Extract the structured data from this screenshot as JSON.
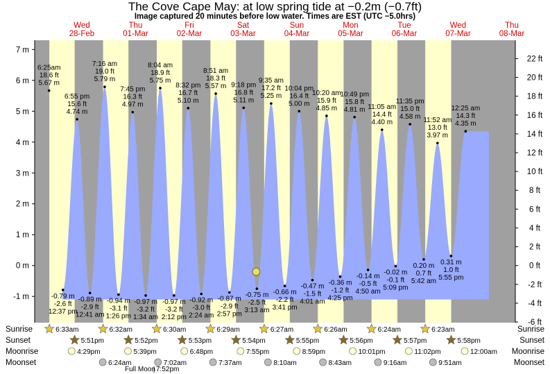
{
  "header": {
    "title": "The Cove Cape May: at low  spring tide at −0.2m (−0.7ft)",
    "subtitle": "Image captured 20 minutes before low water. Times are EST (UTC −5.0hrs)"
  },
  "chart_data": {
    "type": "area",
    "y_left_unit": "m",
    "y_right_unit": "ft",
    "ylim_m": [
      -1.85,
      7.3
    ],
    "left_ticks": [
      "-1 m",
      "0 m",
      "1 m",
      "2 m",
      "3 m",
      "4 m",
      "5 m",
      "6 m",
      "7 m"
    ],
    "left_tick_values": [
      -1,
      0,
      1,
      2,
      3,
      4,
      5,
      6,
      7
    ],
    "right_ticks": [
      "-6 ft",
      "-4 ft",
      "-2 ft",
      "0 ft",
      "2 ft",
      "4 ft",
      "6 ft",
      "8 ft",
      "10 ft",
      "12 ft",
      "14 ft",
      "16 ft",
      "18 ft",
      "20 ft",
      "22 ft"
    ],
    "right_tick_values": [
      -6,
      -4,
      -2,
      0,
      2,
      4,
      6,
      8,
      10,
      12,
      14,
      16,
      18,
      20,
      22
    ],
    "days": [
      {
        "dow": "Wed",
        "date": "28-Feb"
      },
      {
        "dow": "Thu",
        "date": "01-Mar"
      },
      {
        "dow": "Fri",
        "date": "02-Mar"
      },
      {
        "dow": "Sat",
        "date": "03-Mar"
      },
      {
        "dow": "Sun",
        "date": "04-Mar"
      },
      {
        "dow": "Mon",
        "date": "05-Mar"
      },
      {
        "dow": "Tue",
        "date": "06-Mar"
      },
      {
        "dow": "Wed",
        "date": "07-Mar"
      },
      {
        "dow": "Thu",
        "date": "08-Mar"
      }
    ],
    "daylight": [
      {
        "sunrise": "6:33am",
        "sunset": "5:51pm"
      },
      {
        "sunrise": "6:32am",
        "sunset": "5:52pm"
      },
      {
        "sunrise": "6:30am",
        "sunset": "5:53pm"
      },
      {
        "sunrise": "6:29am",
        "sunset": "5:54pm"
      },
      {
        "sunrise": "6:27am",
        "sunset": "5:55pm"
      },
      {
        "sunrise": "6:26am",
        "sunset": "5:56pm"
      },
      {
        "sunrise": "6:24am",
        "sunset": "5:57pm"
      },
      {
        "sunrise": "6:23am",
        "sunset": "5:58pm"
      }
    ],
    "tides": [
      {
        "kind": "high",
        "time": "6:25am",
        "ft": "18.6 ft",
        "m": "5.67 m",
        "value_m": 5.67,
        "day": 0,
        "hour": 6.42
      },
      {
        "kind": "low",
        "time": "12:37 pm",
        "ft": "-2.6 ft",
        "m": "-0.79 m",
        "value_m": -0.79,
        "day": 0,
        "hour": 12.62
      },
      {
        "kind": "high",
        "time": "6:55 pm",
        "ft": "15.6 ft",
        "m": "4.74 m",
        "value_m": 4.74,
        "day": 0,
        "hour": 18.92
      },
      {
        "kind": "low",
        "time": "12:41 am",
        "ft": "-2.9 ft",
        "m": "-0.89 m",
        "value_m": -0.89,
        "day": 1,
        "hour": 0.68
      },
      {
        "kind": "high",
        "time": "7:16 am",
        "ft": "19.0 ft",
        "m": "5.79 m",
        "value_m": 5.79,
        "day": 1,
        "hour": 7.27
      },
      {
        "kind": "low",
        "time": "1:26 pm",
        "ft": "-3.1 ft",
        "m": "-0.94 m",
        "value_m": -0.94,
        "day": 1,
        "hour": 13.43
      },
      {
        "kind": "high",
        "time": "7:45 pm",
        "ft": "16.3 ft",
        "m": "4.97 m",
        "value_m": 4.97,
        "day": 1,
        "hour": 19.75
      },
      {
        "kind": "low",
        "time": "1:34 am",
        "ft": "-3.2 ft",
        "m": "-0.97 m",
        "value_m": -0.97,
        "day": 2,
        "hour": 1.57
      },
      {
        "kind": "high",
        "time": "8:04 am",
        "ft": "18.9 ft",
        "m": "5.75 m",
        "value_m": 5.75,
        "day": 2,
        "hour": 8.07
      },
      {
        "kind": "low",
        "time": "2:12 pm",
        "ft": "-3.2 ft",
        "m": "-0.97 m",
        "value_m": -0.97,
        "day": 2,
        "hour": 14.2
      },
      {
        "kind": "high",
        "time": "8:32 pm",
        "ft": "16.7 ft",
        "m": "5.10 m",
        "value_m": 5.1,
        "day": 2,
        "hour": 20.53
      },
      {
        "kind": "low",
        "time": "2:24 am",
        "ft": "-3.0 ft",
        "m": "-0.92 m",
        "value_m": -0.92,
        "day": 3,
        "hour": 2.4
      },
      {
        "kind": "high",
        "time": "8:51 am",
        "ft": "18.3 ft",
        "m": "5.57 m",
        "value_m": 5.57,
        "day": 3,
        "hour": 8.85
      },
      {
        "kind": "low",
        "time": "2:57 pm",
        "ft": "-2.9 ft",
        "m": "-0.87 m",
        "value_m": -0.87,
        "day": 3,
        "hour": 14.95
      },
      {
        "kind": "high",
        "time": "9:18 pm",
        "ft": "16.8 ft",
        "m": "5.11 m",
        "value_m": 5.11,
        "day": 3,
        "hour": 21.3
      },
      {
        "kind": "low",
        "time": "3:13 am",
        "ft": "-2.5 ft",
        "m": "-0.75 m",
        "value_m": -0.75,
        "day": 4,
        "hour": 3.22
      },
      {
        "kind": "high",
        "time": "9:35 am",
        "ft": "17.2 ft",
        "m": "5.25 m",
        "value_m": 5.25,
        "day": 4,
        "hour": 9.58
      },
      {
        "kind": "low",
        "time": "3:41 pm",
        "ft": "-2.2 ft",
        "m": "-0.66 m",
        "value_m": -0.66,
        "day": 4,
        "hour": 15.68
      },
      {
        "kind": "high",
        "time": "10:04 pm",
        "ft": "16.4 ft",
        "m": "5.00 m",
        "value_m": 5.0,
        "day": 4,
        "hour": 22.07
      },
      {
        "kind": "low",
        "time": "4:01 am",
        "ft": "-1.5 ft",
        "m": "-0.47 m",
        "value_m": -0.47,
        "day": 5,
        "hour": 4.02
      },
      {
        "kind": "high",
        "time": "10:20 am",
        "ft": "15.9 ft",
        "m": "4.85 m",
        "value_m": 4.85,
        "day": 5,
        "hour": 10.33
      },
      {
        "kind": "low",
        "time": "4:25 pm",
        "ft": "-1.2 ft",
        "m": "-0.36 m",
        "value_m": -0.36,
        "day": 5,
        "hour": 16.42
      },
      {
        "kind": "high",
        "time": "10:49 pm",
        "ft": "15.8 ft",
        "m": "4.81 m",
        "value_m": 4.81,
        "day": 5,
        "hour": 22.82
      },
      {
        "kind": "low",
        "time": "4:50 am",
        "ft": "-0.5 ft",
        "m": "-0.14 m",
        "value_m": -0.14,
        "day": 6,
        "hour": 4.83
      },
      {
        "kind": "high",
        "time": "11:05 am",
        "ft": "14.4 ft",
        "m": "4.40 m",
        "value_m": 4.4,
        "day": 6,
        "hour": 11.08
      },
      {
        "kind": "low",
        "time": "5:09 pm",
        "ft": "-0.1 ft",
        "m": "-0.02 m",
        "value_m": -0.02,
        "day": 6,
        "hour": 17.15
      },
      {
        "kind": "high",
        "time": "11:35 pm",
        "ft": "15.0 ft",
        "m": "4.58 m",
        "value_m": 4.58,
        "day": 6,
        "hour": 23.58
      },
      {
        "kind": "low",
        "time": "5:42 am",
        "ft": "0.7 ft",
        "m": "0.20 m",
        "value_m": 0.2,
        "day": 7,
        "hour": 5.7
      },
      {
        "kind": "high",
        "time": "11:52 am",
        "ft": "13.0 ft",
        "m": "3.97 m",
        "value_m": 3.97,
        "day": 7,
        "hour": 11.87
      },
      {
        "kind": "low",
        "time": "5:55 pm",
        "ft": "1.0 ft",
        "m": "0.31 m",
        "value_m": 0.31,
        "day": 7,
        "hour": 17.92
      },
      {
        "kind": "high",
        "time": "12:25 am",
        "ft": "14.3 ft",
        "m": "4.35 m",
        "value_m": 4.35,
        "day": 8,
        "hour": 0.42
      }
    ],
    "current": {
      "value_m": -0.2,
      "day": 4,
      "hour": 2.9
    },
    "rows": {
      "sunrise_label": "Sunrise",
      "sunset_label": "Sunset",
      "moonrise_label": "Moonrise",
      "moonset_label": "Moonset",
      "moonrise": [
        "4:29pm",
        "5:39pm",
        "6:48pm",
        "7:55pm",
        "8:59pm",
        "10:01pm",
        "11:02pm",
        "12:00am"
      ],
      "moonset": [
        "6:24am",
        "7:02am",
        "7:37am",
        "8:10am",
        "8:43am",
        "9:16am",
        "9:51am"
      ],
      "full_moon_label": "Full Moon",
      "full_moon_time": "7:52pm"
    },
    "colors": {
      "night": "#a0a0a0",
      "day": "#ffffcc",
      "tide": "#99aaff",
      "day_label": "#dd0000",
      "sun_star": "#e8c832",
      "sunset_star": "#8c6a1e",
      "moon": "#ffffcc",
      "moonset": "#bbbbbb"
    }
  }
}
